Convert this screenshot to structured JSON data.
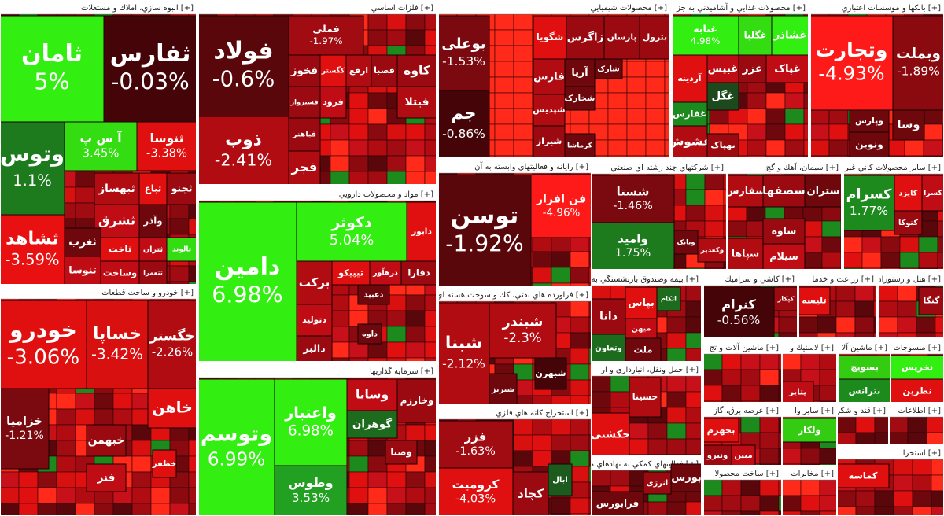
{
  "chart_data": {
    "type": "treemap",
    "sectors": [
      {
        "title": "انبوه سازي، املاك و مستغلات [+]",
        "tiles": [
          {
            "name": "ثامان",
            "change": 5,
            "change_label": "5%",
            "color": "#33ee11"
          },
          {
            "name": "ثفارس",
            "change": -0.03,
            "change_label": "-0.03%",
            "color": "#450508"
          },
          {
            "name": "وتوس",
            "change": 1.1,
            "change_label": "1.1%",
            "color": "#1d7a1d"
          },
          {
            "name": "آ س پ",
            "change": 3.45,
            "change_label": "3.45%",
            "color": "#33dd11"
          },
          {
            "name": "ثنوسا",
            "change": -3.38,
            "change_label": "-3.38%",
            "color": "#e01010"
          },
          {
            "name": "ثشاهد",
            "change": -3.59,
            "change_label": "-3.59%",
            "color": "#e81010"
          },
          {
            "name": "ثبهساز",
            "color": "#b00c12"
          },
          {
            "name": "تباع",
            "color": "#e01010"
          },
          {
            "name": "ثجنو",
            "color": "#9a0a10"
          },
          {
            "name": "ثشرق",
            "color": "#c00c14"
          },
          {
            "name": "وآذر",
            "color": "#6e080d"
          },
          {
            "name": "ثغرب",
            "color": "#6e080d"
          },
          {
            "name": "تنوسا",
            "color": "#c00c14"
          },
          {
            "name": "ثاخت",
            "color": "#e01010"
          },
          {
            "name": "وساخت",
            "color": "#c00c14"
          },
          {
            "name": "ثتران",
            "color": "#c00c14"
          },
          {
            "name": "ثتعمرا",
            "color": "#9a0a10"
          },
          {
            "name": "تالوند",
            "color": "#33dd11"
          }
        ]
      },
      {
        "title": "خودرو و ساخت قطعات [+]",
        "tiles": [
          {
            "name": "خودرو",
            "change": -3.06,
            "change_label": "-3.06%",
            "color": "#e01010"
          },
          {
            "name": "خساپا",
            "change": -3.42,
            "change_label": "-3.42%",
            "color": "#d81010"
          },
          {
            "name": "خگستر",
            "change": -2.26,
            "change_label": "-2.26%",
            "color": "#b00c12"
          },
          {
            "name": "خزامیا",
            "change": -1.21,
            "change_label": "-1.21%",
            "color": "#7a0a10"
          },
          {
            "name": "خاهن",
            "color": "#e01010"
          },
          {
            "name": "خبهمن",
            "color": "#9a0a10"
          },
          {
            "name": "فنر",
            "color": "#c00c14"
          },
          {
            "name": "خظفر",
            "color": "#e01010"
          }
        ]
      },
      {
        "title": "فلزات اساسي [+]",
        "tiles": [
          {
            "name": "فولاد",
            "change": -0.6,
            "change_label": "-0.6%",
            "color": "#5a070b"
          },
          {
            "name": "ذوب",
            "change": -2.41,
            "change_label": "-2.41%",
            "color": "#b00c12"
          },
          {
            "name": "فملی",
            "change": -1.97,
            "change_label": "-1.97%",
            "color": "#a00c12"
          },
          {
            "name": "فخوز",
            "color": "#9a0a10"
          },
          {
            "name": "کگستر",
            "color": "#e01010"
          },
          {
            "name": "ارفع",
            "color": "#b00c12"
          },
          {
            "name": "فصبا",
            "color": "#9a0a10"
          },
          {
            "name": "کاوه",
            "color": "#9a0a10"
          },
          {
            "name": "فسبزوار",
            "color": "#9a0a10"
          },
          {
            "name": "فرود",
            "color": "#c00c14"
          },
          {
            "name": "فیتلا",
            "color": "#b00c12"
          },
          {
            "name": "فباهنر",
            "color": "#9a0a10"
          },
          {
            "name": "فجر",
            "color": "#b00c12"
          }
        ]
      },
      {
        "title": "مواد و محصولات دارويي [+]",
        "tiles": [
          {
            "name": "دامين",
            "change": 6.98,
            "change_label": "6.98%",
            "color": "#33ee11"
          },
          {
            "name": "دکوثر",
            "change": 5.04,
            "change_label": "5.04%",
            "color": "#33ee11"
          },
          {
            "name": "دابور",
            "color": "#e01010"
          },
          {
            "name": "برکت",
            "color": "#b00c12"
          },
          {
            "name": "تیپیکو",
            "color": "#e01010"
          },
          {
            "name": "درهآور",
            "color": "#c00c14"
          },
          {
            "name": "دفارا",
            "color": "#9a0a10"
          },
          {
            "name": "دتولید",
            "color": "#c00c14"
          },
          {
            "name": "دالبر",
            "color": "#9a0a10"
          },
          {
            "name": "دعبید",
            "color": "#6e080d"
          },
          {
            "name": "داوه",
            "color": "#6e080d"
          }
        ]
      },
      {
        "title": "سرمايه گذاريها [+]",
        "tiles": [
          {
            "name": "وتوسم",
            "change": 6.99,
            "change_label": "6.99%",
            "color": "#33ee11"
          },
          {
            "name": "واعتبار",
            "change": 6.98,
            "change_label": "6.98%",
            "color": "#33ee11"
          },
          {
            "name": "وطوس",
            "change": 3.53,
            "change_label": "3.53%",
            "color": "#22a022"
          },
          {
            "name": "وخارزم",
            "color": "#9a0a10"
          },
          {
            "name": "وسایا",
            "color": "#c00c14"
          },
          {
            "name": "گوهران",
            "color": "#1d6b1d"
          },
          {
            "name": "وصنا",
            "color": "#9a0a10"
          }
        ]
      },
      {
        "title": "محصولات شيميايي [+]",
        "tiles": [
          {
            "name": "بوعلی",
            "change": -1.53,
            "change_label": "-1.53%",
            "color": "#7a0a10"
          },
          {
            "name": "جم",
            "change": -0.86,
            "change_label": "-0.86%",
            "color": "#450508"
          },
          {
            "name": "شگویا",
            "color": "#e01010"
          },
          {
            "name": "زاگرس",
            "color": "#9a0a10"
          },
          {
            "name": "پارسان",
            "color": "#9a0a10"
          },
          {
            "name": "بترول",
            "color": "#9a0a10"
          },
          {
            "name": "فارس",
            "color": "#b00c12"
          },
          {
            "name": "آریا",
            "color": "#6e080d"
          },
          {
            "name": "شارک",
            "color": "#6e080d"
          },
          {
            "name": "شپدیس",
            "color": "#b00c12"
          },
          {
            "name": "شخارک",
            "color": "#6e080d"
          },
          {
            "name": "شیراز",
            "color": "#9a0a10"
          },
          {
            "name": "کرماشا",
            "color": "#6e080d"
          }
        ]
      },
      {
        "title": "محصولات غذايي و آشاميدني به جز [+]",
        "tiles": [
          {
            "name": "غنابه",
            "change": 4.98,
            "change_label": "4.98%",
            "color": "#33ee11"
          },
          {
            "name": "غگلپا",
            "color": "#33dd11"
          },
          {
            "name": "غشاذر",
            "color": "#33ee11"
          },
          {
            "name": "آردینه",
            "color": "#e01010"
          },
          {
            "name": "غبیس",
            "color": "#c00c14"
          },
          {
            "name": "غزر",
            "color": "#9a0a10"
          },
          {
            "name": "غگل",
            "color": "#1d4a1d"
          },
          {
            "name": "غفارس",
            "color": "#1d8a1d"
          },
          {
            "name": "غپاک",
            "color": "#c00c14"
          },
          {
            "name": "غشوش",
            "color": "#b00c12"
          },
          {
            "name": "بهپاک",
            "color": "#9a0a10"
          }
        ]
      },
      {
        "title": "بانکها و موسسات اعتباري [+]",
        "tiles": [
          {
            "name": "وتجارت",
            "change": -4.93,
            "change_label": "-4.93%",
            "color": "#ff1a1a"
          },
          {
            "name": "وبملت",
            "change": -1.89,
            "change_label": "-1.89%",
            "color": "#8a0a10"
          },
          {
            "name": "وپارس",
            "color": "#6e080d"
          },
          {
            "name": "ونوین",
            "color": "#6e080d"
          },
          {
            "name": "وسا",
            "color": "#6e080d"
          }
        ]
      },
      {
        "title": "رايانه و فعاليتهاي وابسته به آن [+]",
        "tiles": [
          {
            "name": "توسن",
            "change": -1.92,
            "change_label": "-1.92%",
            "color": "#5a070b"
          },
          {
            "name": "فن افزار",
            "change": -4.96,
            "change_label": "-4.96%",
            "color": "#ff1a1a"
          }
        ]
      },
      {
        "title": "فراورده هاي نفتي، كك و سوخت هسته اي [+]",
        "tiles": [
          {
            "name": "شبنا",
            "change": -2.12,
            "change_label": "-2.12%",
            "color": "#b00c12"
          },
          {
            "name": "شبندر",
            "change": -2.3,
            "change_label": "-2.3%",
            "color": "#b00c12"
          },
          {
            "name": "شبهرن",
            "color": "#450508"
          },
          {
            "name": "شبریز",
            "color": "#6e080d"
          }
        ]
      },
      {
        "title": "استخراج كانه هاي فلزي [+]",
        "tiles": [
          {
            "name": "فزر",
            "change": -1.63,
            "change_label": "-1.63%",
            "color": "#a00c12"
          },
          {
            "name": "كروميت",
            "change": -4.03,
            "change_label": "-4.03%",
            "color": "#e01010"
          },
          {
            "name": "کچاد",
            "color": "#9a0a10"
          },
          {
            "name": "ابال",
            "color": "#1d5a1d"
          }
        ]
      },
      {
        "title": "شركتهاي چند رشته اي صنعتي [+]",
        "tiles": [
          {
            "name": "شستا",
            "change": -1.46,
            "change_label": "-1.46%",
            "color": "#7a0a10"
          },
          {
            "name": "وامید",
            "change": 1.75,
            "change_label": "1.75%",
            "color": "#1d7a1d"
          },
          {
            "name": "وبانک",
            "color": "#6e080d"
          },
          {
            "name": "وکغدیر",
            "color": "#b00c12"
          }
        ]
      },
      {
        "title": "سيمان، آهك و گچ [+]",
        "tiles": [
          {
            "name": "سفارس",
            "color": "#b00c12"
          },
          {
            "name": "سصفها",
            "color": "#9a0a10"
          },
          {
            "name": "ستران",
            "color": "#6e080d"
          },
          {
            "name": "سپاها",
            "color": "#b00c12"
          },
          {
            "name": "ساوه",
            "color": "#9a0a10"
          },
          {
            "name": "سیلام",
            "color": "#c00c14"
          }
        ]
      },
      {
        "title": "ساير محصولات كاني غير [+]",
        "tiles": [
          {
            "name": "کسرام",
            "change": 1.77,
            "change_label": "1.77%",
            "color": "#1d8a1d"
          },
          {
            "name": "کایزد",
            "color": "#e01010"
          },
          {
            "name": "کسرا",
            "color": "#c00c14"
          },
          {
            "name": "کتوکا",
            "color": "#9a0a10"
          }
        ]
      },
      {
        "title": "بيمه وصندوق بازنشستگي به [+]",
        "tiles": [
          {
            "name": "بپاس",
            "color": "#e01010"
          },
          {
            "name": "اتکام",
            "color": "#1d6b1d"
          },
          {
            "name": "دانا",
            "color": "#9a0a10"
          },
          {
            "name": "میهن",
            "color": "#c00c14"
          },
          {
            "name": "وتعاون",
            "color": "#1d6b1d"
          },
          {
            "name": "ملت",
            "color": "#6e080d"
          }
        ]
      },
      {
        "title": "كاشي و سراميك [+]",
        "tiles": [
          {
            "name": "كنرام",
            "change": -0.56,
            "change_label": "-0.56%",
            "color": "#450508"
          },
          {
            "name": "کپکار",
            "color": "#9a0a10"
          }
        ]
      },
      {
        "title": "زراعت و خدما [+]",
        "tiles": [
          {
            "name": "تلیسه",
            "color": "#e01010"
          }
        ]
      },
      {
        "title": "هتل و رستوران [+]",
        "tiles": [
          {
            "name": "گنگا",
            "color": "#9a0a10"
          }
        ]
      },
      {
        "title": "حمل ونقل، انبارداري و ار [+]",
        "tiles": [
          {
            "name": "حسینا",
            "color": "#b00c12"
          },
          {
            "name": "حکشتی",
            "color": "#e01010"
          }
        ]
      },
      {
        "title": "فعاليتهاي كمكي به نهادهاي م [+]",
        "tiles": [
          {
            "name": "انرژی",
            "color": "#9a0a10"
          },
          {
            "name": "بورس",
            "color": "#6e080d"
          },
          {
            "name": "فرابورس",
            "color": "#6e080d"
          }
        ]
      },
      {
        "title": "ماشين آلات و تج [+]",
        "tiles": []
      },
      {
        "title": "لاستيك و [+]",
        "tiles": [
          {
            "name": "پتایر",
            "color": "#c00c14"
          }
        ]
      },
      {
        "title": "ماشين آلا [+]",
        "tiles": [
          {
            "name": "بسویچ",
            "color": "#33cc11"
          },
          {
            "name": "بترانس",
            "color": "#1d8a1d"
          }
        ]
      },
      {
        "title": "منسوجات [+]",
        "tiles": [
          {
            "name": "نخریس",
            "color": "#33ee11"
          },
          {
            "name": "نطرین",
            "color": "#e01010"
          }
        ]
      },
      {
        "title": "عرضه برق، گاز [+]",
        "tiles": [
          {
            "name": "بجهرم",
            "color": "#e01010"
          },
          {
            "name": "ونیرو",
            "color": "#9a0a10"
          },
          {
            "name": "مبین",
            "color": "#c00c14"
          }
        ]
      },
      {
        "title": "ساير وا [+]",
        "tiles": [
          {
            "name": "ولکار",
            "color": "#33cc11"
          }
        ]
      },
      {
        "title": "قند و شكر [+]",
        "tiles": []
      },
      {
        "title": "اطلاعات [+]",
        "tiles": []
      },
      {
        "title": "ساخت محصولا [+]",
        "tiles": []
      },
      {
        "title": "مخابرات [+]",
        "tiles": []
      },
      {
        "title": "استخرا [+]",
        "tiles": [
          {
            "name": "کماسه",
            "color": "#e01010"
          }
        ]
      }
    ]
  }
}
